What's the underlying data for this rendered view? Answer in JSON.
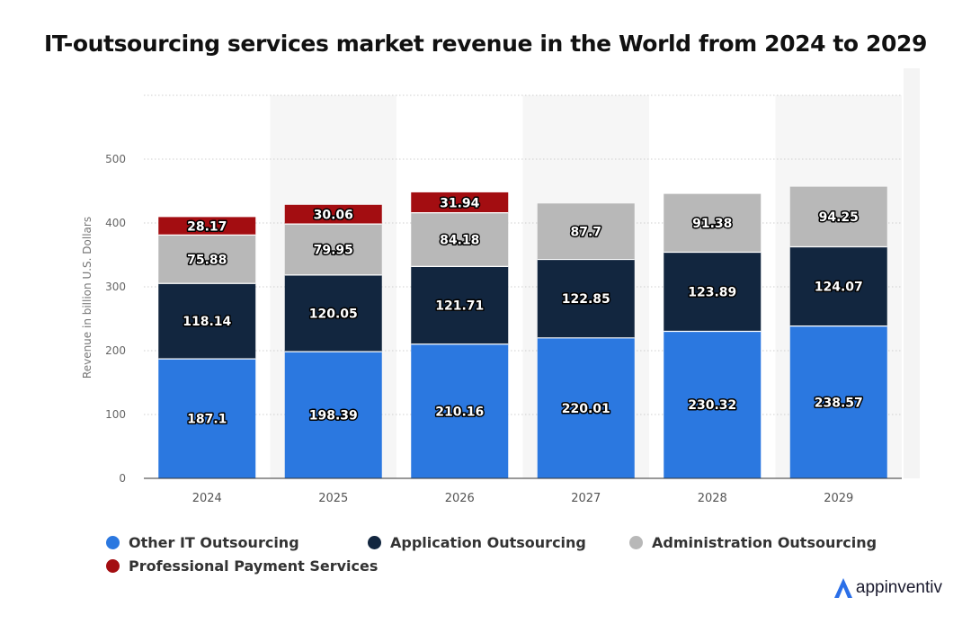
{
  "title": "IT-outsourcing services market revenue in the World from 2024 to 2029",
  "logo_text": "appinventiv",
  "colors": {
    "other_it": "#2b78e0",
    "application": "#12263f",
    "administration": "#b8b8b8",
    "payment": "#a30d11",
    "logo_accent": "#2b6fe8"
  },
  "chart_data": {
    "type": "bar",
    "stacked": true,
    "categories": [
      "2024",
      "2025",
      "2026",
      "2027",
      "2028",
      "2029"
    ],
    "series": [
      {
        "name": "Other IT Outsourcing",
        "values": [
          187.1,
          198.39,
          210.16,
          220.01,
          230.32,
          238.57
        ]
      },
      {
        "name": "Application Outsourcing",
        "values": [
          118.14,
          120.05,
          121.71,
          122.85,
          123.89,
          124.07
        ]
      },
      {
        "name": "Administration Outsourcing",
        "values": [
          75.88,
          79.95,
          84.18,
          87.7,
          91.38,
          94.25
        ]
      },
      {
        "name": "Professional Payment Services",
        "values": [
          28.17,
          30.06,
          31.94,
          null,
          null,
          null
        ]
      }
    ],
    "ylabel": "Revenue in billion U.S. Dollars",
    "xlabel": "",
    "ylim": [
      0,
      600
    ],
    "yticks": [
      0,
      100,
      200,
      300,
      400,
      500
    ],
    "grid": true,
    "legend_position": "bottom"
  }
}
